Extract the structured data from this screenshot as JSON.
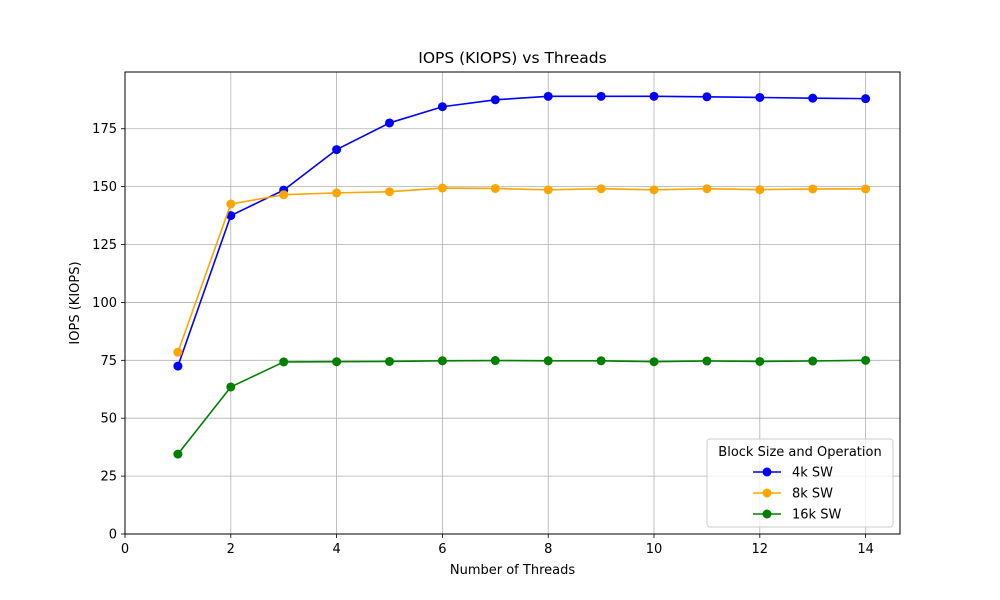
{
  "chart_data": {
    "type": "line",
    "title": "IOPS (KIOPS) vs Threads",
    "xlabel": "Number of Threads",
    "ylabel": "IOPS (KIOPS)",
    "xlim": [
      0,
      14.65
    ],
    "ylim": [
      0,
      199.5
    ],
    "x_ticks": [
      0,
      2,
      4,
      6,
      8,
      10,
      12,
      14
    ],
    "y_ticks": [
      0,
      25,
      50,
      75,
      100,
      125,
      150,
      175
    ],
    "grid": true,
    "legend": {
      "title": "Block Size and Operation",
      "placement": "lower-right"
    },
    "x": [
      1,
      2,
      3,
      4,
      5,
      6,
      7,
      8,
      9,
      10,
      11,
      12,
      13,
      14
    ],
    "series": [
      {
        "name": "4k SW",
        "color": "#0000ff",
        "values": [
          72.5,
          137.5,
          148.5,
          166,
          177.5,
          184.5,
          187.5,
          189,
          189,
          189,
          188.8,
          188.5,
          188.2,
          188
        ]
      },
      {
        "name": "8k SW",
        "color": "#ffa500",
        "values": [
          78.5,
          142.5,
          146.5,
          147.3,
          147.8,
          149.4,
          149.2,
          148.6,
          149.1,
          148.6,
          149.1,
          148.7,
          149,
          149
        ]
      },
      {
        "name": "16k SW",
        "color": "#008000",
        "values": [
          34.5,
          63.5,
          74.3,
          74.4,
          74.5,
          74.8,
          74.9,
          74.8,
          74.8,
          74.4,
          74.7,
          74.5,
          74.7,
          75
        ]
      }
    ]
  }
}
